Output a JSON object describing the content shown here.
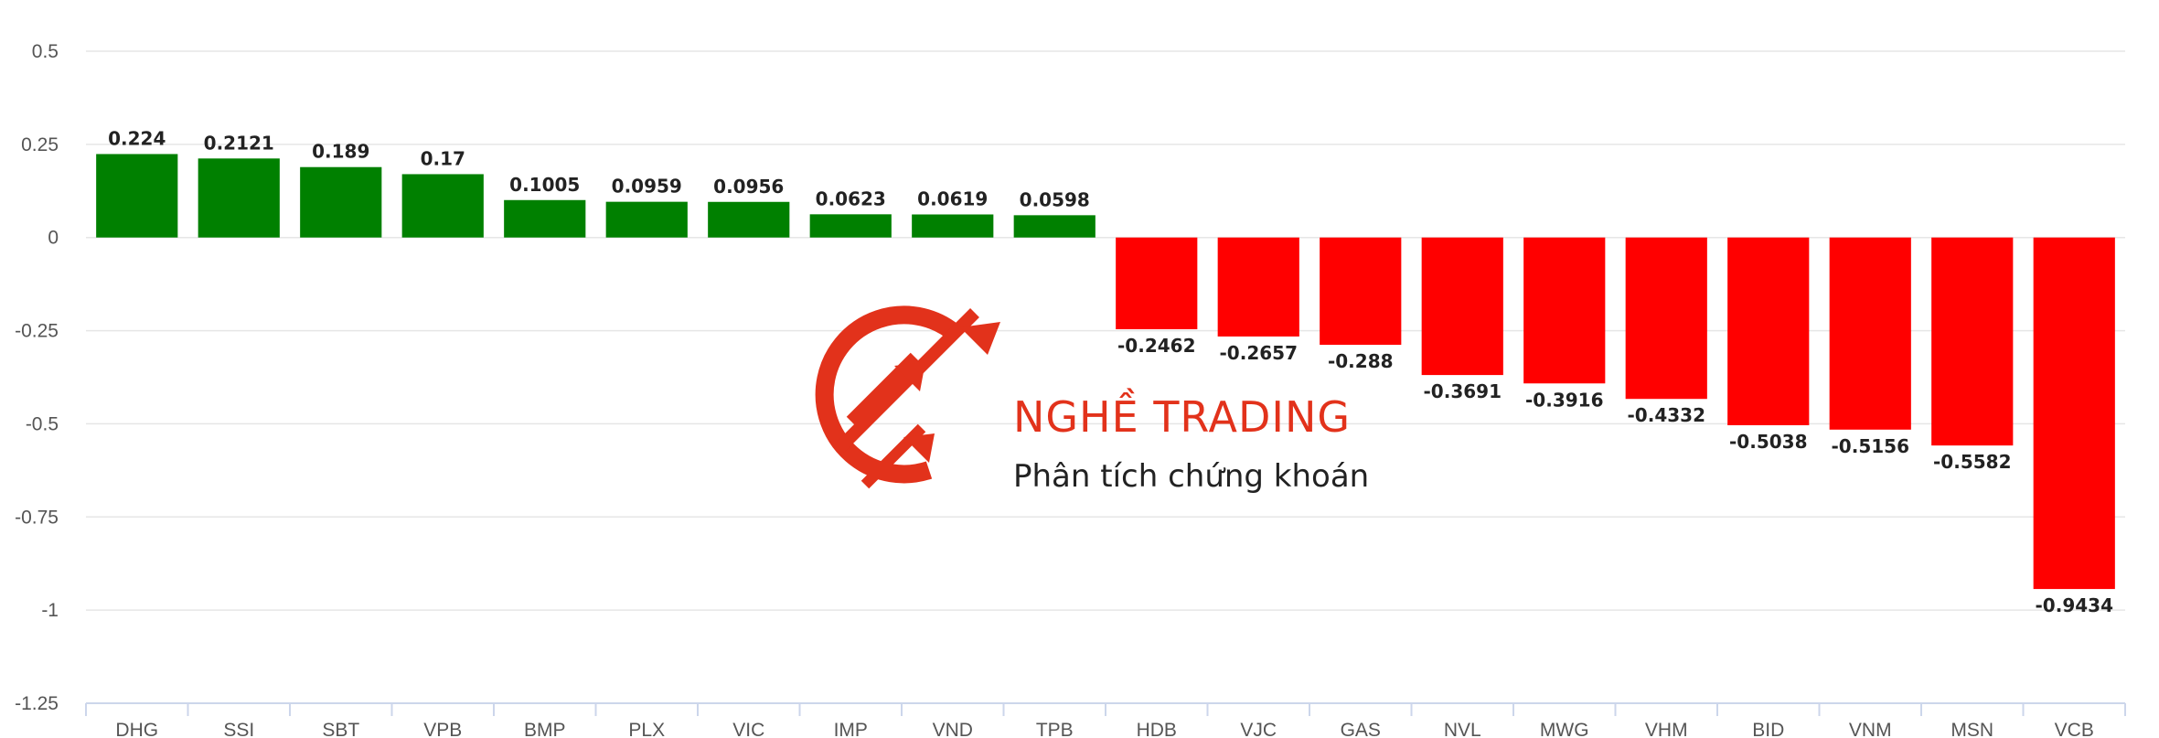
{
  "chart_data": {
    "type": "bar",
    "categories": [
      "DHG",
      "SSI",
      "SBT",
      "VPB",
      "BMP",
      "PLX",
      "VIC",
      "IMP",
      "VND",
      "TPB",
      "HDB",
      "VJC",
      "GAS",
      "NVL",
      "MWG",
      "VHM",
      "BID",
      "VNM",
      "MSN",
      "VCB"
    ],
    "values": [
      0.224,
      0.2121,
      0.189,
      0.17,
      0.1005,
      0.0959,
      0.0956,
      0.0623,
      0.0619,
      0.0598,
      -0.2462,
      -0.2657,
      -0.288,
      -0.3691,
      -0.3916,
      -0.4332,
      -0.5038,
      -0.5156,
      -0.5582,
      -0.9434
    ],
    "data_labels": [
      "0.224",
      "0.2121",
      "0.189",
      "0.17",
      "0.1005",
      "0.0959",
      "0.0956",
      "0.0623",
      "0.0619",
      "0.0598",
      "-0.2462",
      "-0.2657",
      "-0.288",
      "-0.3691",
      "-0.3916",
      "-0.4332",
      "-0.5038",
      "-0.5156",
      "-0.5582",
      "-0.9434"
    ],
    "y_ticks": [
      0.5,
      0.25,
      0,
      -0.25,
      -0.5,
      -0.75,
      -1,
      -1.25
    ],
    "y_tick_labels": [
      "0.5",
      "0.25",
      "0",
      "-0.25",
      "-0.5",
      "-0.75",
      "-1",
      "-1.25"
    ],
    "ylim": [
      -1.25,
      0.5
    ],
    "grid": true,
    "colors": {
      "positive": "#008000",
      "negative": "#ff0000",
      "grid": "#e6e6e6",
      "axis": "#ccd6eb"
    },
    "title": "",
    "xlabel": "",
    "ylabel": ""
  },
  "watermark": {
    "title": "NGHỀ TRADING",
    "subtitle": "Phân tích chứng khoán",
    "color": "#e2321b",
    "icon": "logo-arrows-icon"
  }
}
